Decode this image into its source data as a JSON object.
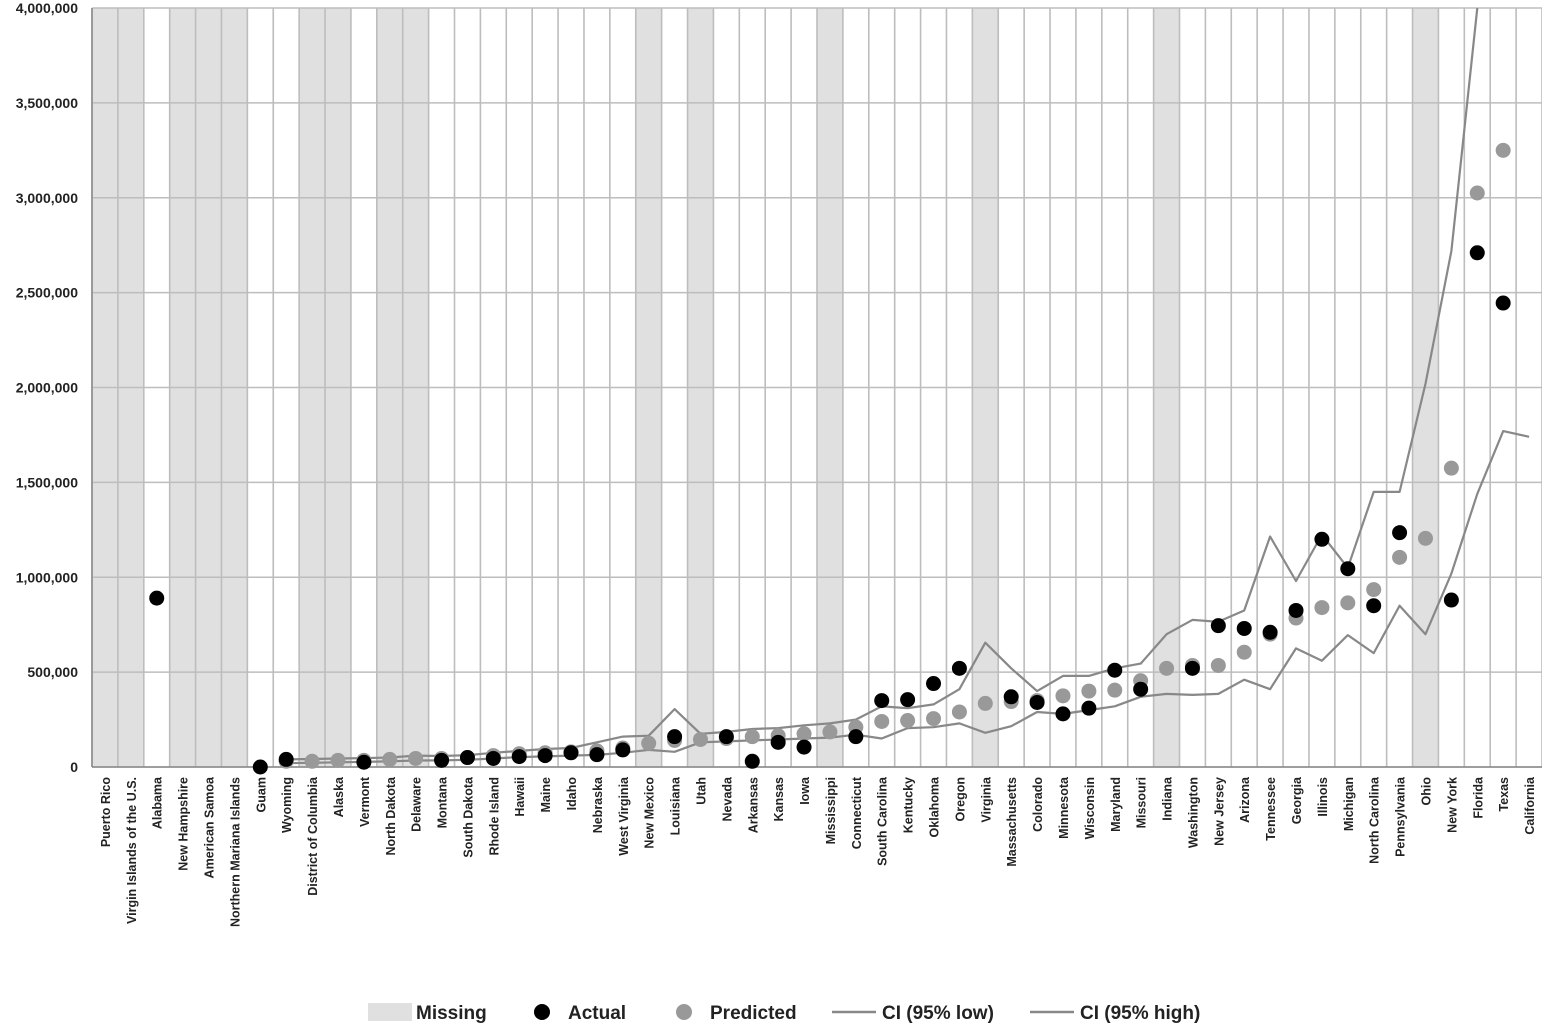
{
  "chart_data": {
    "type": "scatter",
    "title": "",
    "xlabel": "",
    "ylabel": "",
    "ylim": [
      0,
      4000000
    ],
    "yticks": [
      0,
      500000,
      1000000,
      1500000,
      2000000,
      2500000,
      3000000,
      3500000,
      4000000
    ],
    "ytick_labels": [
      "0",
      "500,000",
      "1,000,000",
      "1,500,000",
      "2,000,000",
      "2,500,000",
      "3,000,000",
      "3,500,000",
      "4,000,000"
    ],
    "grid": true,
    "legend_position": "bottom",
    "categories": [
      "Puerto Rico",
      "Virgin Islands of the U.S.",
      "Alabama",
      "New Hampshire",
      "American Samoa",
      "Northern Mariana Islands",
      "Guam",
      "Wyoming",
      "District of Columbia",
      "Alaska",
      "Vermont",
      "North Dakota",
      "Delaware",
      "Montana",
      "South Dakota",
      "Rhode Island",
      "Hawaii",
      "Maine",
      "Idaho",
      "Nebraska",
      "West Virginia",
      "New Mexico",
      "Louisiana",
      "Utah",
      "Nevada",
      "Arkansas",
      "Kansas",
      "Iowa",
      "Mississippi",
      "Connecticut",
      "South Carolina",
      "Kentucky",
      "Oklahoma",
      "Oregon",
      "Virginia",
      "Massachusetts",
      "Colorado",
      "Minnesota",
      "Wisconsin",
      "Maryland",
      "Missouri",
      "Indiana",
      "Washington",
      "New Jersey",
      "Arizona",
      "Tennessee",
      "Georgia",
      "Illinois",
      "Michigan",
      "North Carolina",
      "Pennsylvania",
      "Ohio",
      "New York",
      "Florida",
      "Texas",
      "California"
    ],
    "missing": [
      1,
      1,
      0,
      1,
      1,
      1,
      0,
      0,
      1,
      1,
      0,
      1,
      1,
      0,
      0,
      0,
      0,
      0,
      0,
      0,
      0,
      1,
      0,
      1,
      0,
      0,
      0,
      0,
      1,
      0,
      0,
      0,
      0,
      0,
      1,
      0,
      0,
      0,
      0,
      0,
      0,
      1,
      0,
      0,
      0,
      0,
      0,
      0,
      0,
      0,
      0,
      1,
      0,
      0,
      0,
      0
    ],
    "series": [
      {
        "name": "Actual",
        "color": "#000000",
        "values": [
          null,
          null,
          890000,
          null,
          null,
          null,
          0,
          40000,
          null,
          null,
          25000,
          null,
          null,
          35000,
          50000,
          45000,
          55000,
          60000,
          75000,
          65000,
          90000,
          null,
          160000,
          null,
          160000,
          30000,
          130000,
          105000,
          null,
          160000,
          350000,
          355000,
          440000,
          520000,
          null,
          370000,
          340000,
          280000,
          310000,
          510000,
          410000,
          null,
          520000,
          745000,
          730000,
          710000,
          825000,
          1200000,
          1045000,
          850000,
          1235000,
          null,
          880000,
          2710000,
          2445000,
          null
        ]
      },
      {
        "name": "Predicted",
        "color": "#999999",
        "values": [
          null,
          null,
          null,
          null,
          null,
          null,
          null,
          30000,
          30000,
          35000,
          35000,
          40000,
          45000,
          45000,
          50000,
          60000,
          70000,
          75000,
          80000,
          85000,
          100000,
          125000,
          140000,
          145000,
          150000,
          160000,
          165000,
          175000,
          185000,
          210000,
          240000,
          245000,
          255000,
          290000,
          335000,
          345000,
          350000,
          375000,
          400000,
          405000,
          455000,
          520000,
          535000,
          535000,
          605000,
          700000,
          785000,
          840000,
          865000,
          935000,
          1105000,
          1205000,
          1575000,
          3025000,
          3250000,
          null
        ]
      },
      {
        "name": "CI (95% low)",
        "color": "#888888",
        "values": [
          null,
          null,
          null,
          null,
          null,
          null,
          null,
          20000,
          22000,
          25000,
          27000,
          30000,
          34000,
          35000,
          38000,
          45000,
          52000,
          56000,
          60000,
          64000,
          75000,
          90000,
          80000,
          130000,
          135000,
          140000,
          145000,
          150000,
          155000,
          170000,
          150000,
          205000,
          210000,
          230000,
          180000,
          215000,
          290000,
          280000,
          300000,
          320000,
          370000,
          385000,
          380000,
          385000,
          460000,
          410000,
          625000,
          560000,
          695000,
          600000,
          850000,
          700000,
          1020000,
          1440000,
          1770000,
          1740000
        ]
      },
      {
        "name": "CI (95% high)",
        "color": "#888888",
        "values": [
          null,
          null,
          null,
          null,
          null,
          null,
          null,
          40000,
          42000,
          45000,
          47000,
          50000,
          60000,
          58000,
          62000,
          75000,
          85000,
          95000,
          100000,
          130000,
          160000,
          165000,
          305000,
          175000,
          185000,
          200000,
          205000,
          220000,
          230000,
          250000,
          320000,
          310000,
          330000,
          410000,
          655000,
          520000,
          400000,
          480000,
          480000,
          520000,
          545000,
          700000,
          775000,
          765000,
          825000,
          1215000,
          980000,
          1225000,
          1050000,
          1450000,
          1450000,
          2020000,
          2720000,
          4000000,
          null,
          null
        ]
      }
    ],
    "legend": [
      {
        "label": "Missing",
        "kind": "patch",
        "color": "#e0e0e0"
      },
      {
        "label": "Actual",
        "kind": "marker",
        "color": "#000000"
      },
      {
        "label": "Predicted",
        "kind": "marker",
        "color": "#999999"
      },
      {
        "label": "CI (95% low)",
        "kind": "line",
        "color": "#888888"
      },
      {
        "label": "CI (95% high)",
        "kind": "line",
        "color": "#888888"
      }
    ]
  }
}
